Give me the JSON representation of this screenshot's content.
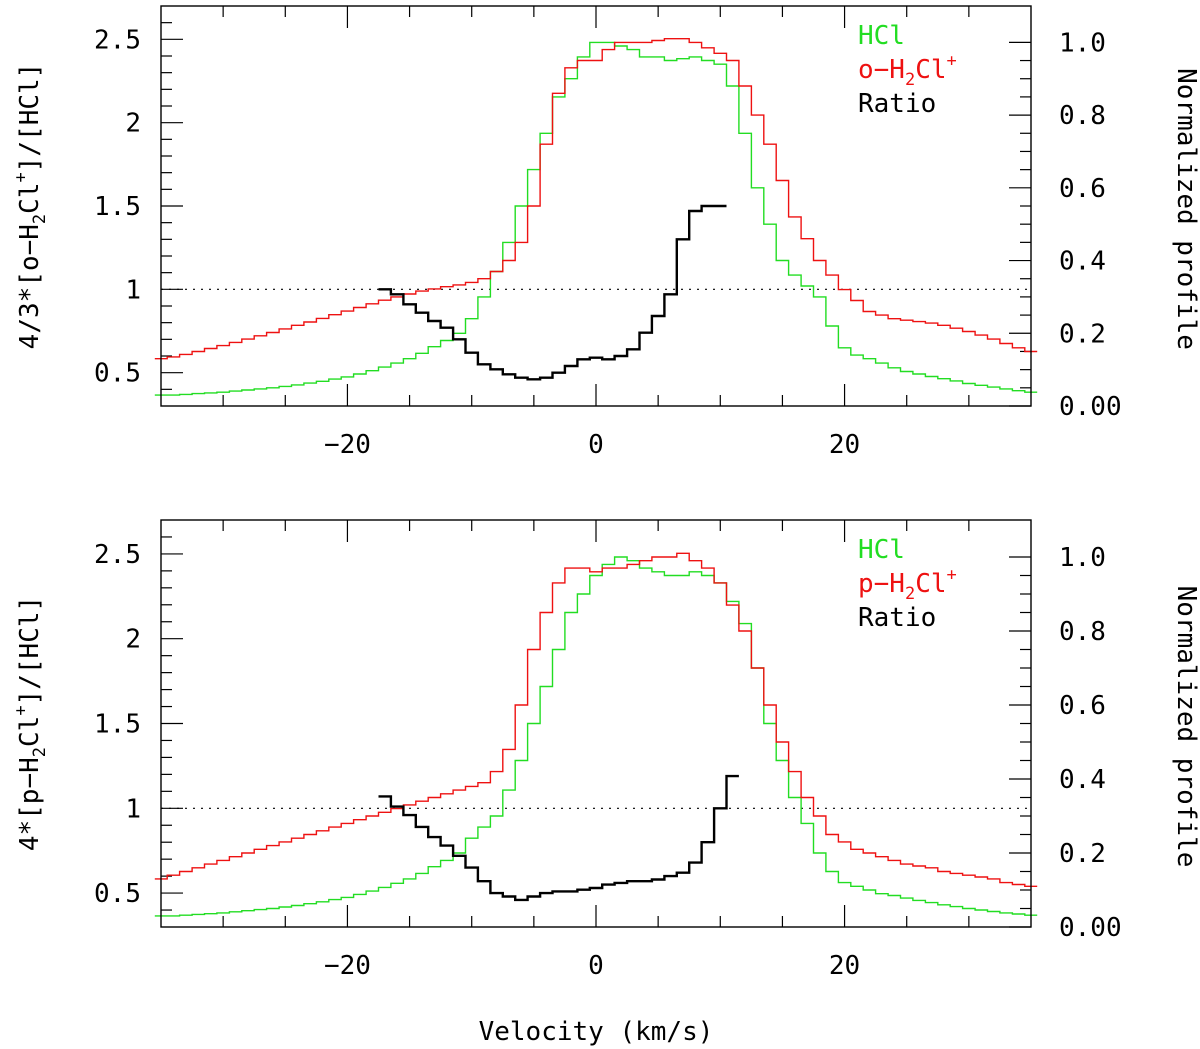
{
  "xlabel": "Velocity (km/s)",
  "colors": {
    "hcl": "#22dd22",
    "h2cl": "#ee1111",
    "ratio": "#000000"
  },
  "chart_data": [
    {
      "type": "line",
      "panel": "top",
      "xlim": [
        -35,
        35
      ],
      "ylim_left": [
        0.3,
        2.7
      ],
      "ylim_right": [
        0.0,
        1.1
      ],
      "xticks": [
        -20,
        0,
        20
      ],
      "yticks_left": [
        0.5,
        1,
        1.5,
        2,
        2.5
      ],
      "yticks_left_labels": [
        "0.5",
        "1",
        "1.5",
        "2",
        "2.5"
      ],
      "yticks_right": [
        0.0,
        0.2,
        0.4,
        0.6,
        0.8,
        1.0
      ],
      "yticks_right_labels": [
        "0.00",
        "0.2",
        "0.4",
        "0.6",
        "0.8",
        "1.0"
      ],
      "ylabel_left": {
        "pre": "4/3*[o−H",
        "sub": "2",
        "mid": "Cl",
        "sup": "+",
        "post": "]/[HCl]"
      },
      "ylabel_right": "Normalized profile",
      "reference_line": 1,
      "legend": [
        {
          "name": "HCl",
          "color_key": "hcl",
          "pre": "HCl",
          "sub": "",
          "mid": "",
          "sup": ""
        },
        {
          "name": "o-H2Cl+",
          "color_key": "h2cl",
          "pre": "o−H",
          "sub": "2",
          "mid": "Cl",
          "sup": "+"
        },
        {
          "name": "Ratio",
          "color_key": "ratio",
          "pre": "Ratio",
          "sub": "",
          "mid": "",
          "sup": ""
        }
      ],
      "series": [
        {
          "name": "HCl",
          "axis": "right",
          "color_key": "hcl",
          "x0": -35,
          "step": 1,
          "values": [
            0.03,
            0.03,
            0.032,
            0.034,
            0.036,
            0.038,
            0.041,
            0.044,
            0.047,
            0.05,
            0.054,
            0.058,
            0.063,
            0.068,
            0.074,
            0.08,
            0.088,
            0.097,
            0.107,
            0.118,
            0.13,
            0.145,
            0.163,
            0.18,
            0.2,
            0.24,
            0.3,
            0.37,
            0.45,
            0.55,
            0.65,
            0.75,
            0.85,
            0.9,
            0.96,
            1.0,
            1.0,
            0.99,
            0.98,
            0.96,
            0.96,
            0.95,
            0.955,
            0.96,
            0.95,
            0.94,
            0.88,
            0.75,
            0.6,
            0.5,
            0.4,
            0.36,
            0.33,
            0.3,
            0.22,
            0.16,
            0.14,
            0.13,
            0.118,
            0.105,
            0.095,
            0.088,
            0.081,
            0.075,
            0.069,
            0.062,
            0.057,
            0.052,
            0.047,
            0.042,
            0.038
          ]
        },
        {
          "name": "o-H2Cl+",
          "axis": "right",
          "color_key": "h2cl",
          "x0": -35,
          "step": 1,
          "values": [
            0.13,
            0.135,
            0.142,
            0.15,
            0.158,
            0.166,
            0.175,
            0.184,
            0.193,
            0.202,
            0.212,
            0.222,
            0.231,
            0.241,
            0.251,
            0.261,
            0.271,
            0.281,
            0.291,
            0.3,
            0.308,
            0.316,
            0.322,
            0.328,
            0.333,
            0.34,
            0.35,
            0.37,
            0.4,
            0.45,
            0.55,
            0.72,
            0.86,
            0.93,
            0.95,
            0.95,
            0.98,
            1.0,
            1.0,
            1.0,
            1.005,
            1.01,
            1.01,
            1.0,
            0.985,
            0.97,
            0.95,
            0.88,
            0.8,
            0.72,
            0.62,
            0.52,
            0.46,
            0.4,
            0.36,
            0.32,
            0.29,
            0.26,
            0.25,
            0.24,
            0.236,
            0.232,
            0.228,
            0.222,
            0.214,
            0.205,
            0.195,
            0.184,
            0.172,
            0.16,
            0.15
          ]
        },
        {
          "name": "Ratio",
          "axis": "left",
          "color_key": "ratio",
          "x0": -17,
          "step": 1,
          "values": [
            1.0,
            0.97,
            0.91,
            0.86,
            0.81,
            0.77,
            0.7,
            0.62,
            0.55,
            0.52,
            0.49,
            0.47,
            0.46,
            0.47,
            0.5,
            0.54,
            0.58,
            0.59,
            0.58,
            0.6,
            0.64,
            0.74,
            0.84,
            0.97,
            1.3,
            1.47,
            1.5,
            1.5
          ]
        }
      ]
    },
    {
      "type": "line",
      "panel": "bottom",
      "xlim": [
        -35,
        35
      ],
      "ylim_left": [
        0.3,
        2.7
      ],
      "ylim_right": [
        0.0,
        1.1
      ],
      "xticks": [
        -20,
        0,
        20
      ],
      "yticks_left": [
        0.5,
        1,
        1.5,
        2,
        2.5
      ],
      "yticks_left_labels": [
        "0.5",
        "1",
        "1.5",
        "2",
        "2.5"
      ],
      "yticks_right": [
        0.0,
        0.2,
        0.4,
        0.6,
        0.8,
        1.0
      ],
      "yticks_right_labels": [
        "0.00",
        "0.2",
        "0.4",
        "0.6",
        "0.8",
        "1.0"
      ],
      "ylabel_left": {
        "pre": "4*[p−H",
        "sub": "2",
        "mid": "Cl",
        "sup": "+",
        "post": "]/[HCl]"
      },
      "ylabel_right": "Normalized profile",
      "reference_line": 1,
      "legend": [
        {
          "name": "HCl",
          "color_key": "hcl",
          "pre": "HCl",
          "sub": "",
          "mid": "",
          "sup": ""
        },
        {
          "name": "p-H2Cl+",
          "color_key": "h2cl",
          "pre": "p−H",
          "sub": "2",
          "mid": "Cl",
          "sup": "+"
        },
        {
          "name": "Ratio",
          "color_key": "ratio",
          "pre": "Ratio",
          "sub": "",
          "mid": "",
          "sup": ""
        }
      ],
      "series": [
        {
          "name": "HCl",
          "axis": "right",
          "color_key": "hcl",
          "x0": -35,
          "step": 1,
          "values": [
            0.03,
            0.03,
            0.032,
            0.034,
            0.036,
            0.038,
            0.041,
            0.044,
            0.047,
            0.05,
            0.054,
            0.058,
            0.063,
            0.068,
            0.074,
            0.08,
            0.088,
            0.097,
            0.107,
            0.118,
            0.13,
            0.145,
            0.163,
            0.18,
            0.2,
            0.24,
            0.27,
            0.3,
            0.37,
            0.45,
            0.55,
            0.65,
            0.75,
            0.85,
            0.9,
            0.95,
            0.98,
            1.0,
            0.99,
            0.97,
            0.96,
            0.95,
            0.95,
            0.96,
            0.95,
            0.93,
            0.88,
            0.82,
            0.7,
            0.55,
            0.45,
            0.35,
            0.28,
            0.2,
            0.15,
            0.12,
            0.11,
            0.1,
            0.09,
            0.085,
            0.078,
            0.072,
            0.066,
            0.06,
            0.055,
            0.05,
            0.046,
            0.042,
            0.038,
            0.035,
            0.032
          ]
        },
        {
          "name": "p-H2Cl+",
          "axis": "right",
          "color_key": "h2cl",
          "x0": -35,
          "step": 1,
          "values": [
            0.13,
            0.14,
            0.15,
            0.16,
            0.17,
            0.18,
            0.19,
            0.2,
            0.21,
            0.22,
            0.23,
            0.24,
            0.25,
            0.26,
            0.27,
            0.28,
            0.29,
            0.3,
            0.31,
            0.32,
            0.33,
            0.34,
            0.35,
            0.36,
            0.37,
            0.38,
            0.39,
            0.42,
            0.48,
            0.6,
            0.75,
            0.85,
            0.93,
            0.97,
            0.97,
            0.96,
            0.97,
            0.97,
            0.98,
            0.99,
            1.0,
            1.0,
            1.01,
            0.99,
            0.97,
            0.93,
            0.87,
            0.8,
            0.7,
            0.6,
            0.5,
            0.42,
            0.35,
            0.3,
            0.25,
            0.23,
            0.21,
            0.2,
            0.19,
            0.18,
            0.17,
            0.165,
            0.16,
            0.15,
            0.145,
            0.14,
            0.135,
            0.13,
            0.12,
            0.115,
            0.11
          ]
        },
        {
          "name": "Ratio",
          "axis": "left",
          "color_key": "ratio",
          "x0": -17,
          "step": 1,
          "values": [
            1.07,
            1.01,
            0.96,
            0.89,
            0.83,
            0.78,
            0.72,
            0.65,
            0.57,
            0.5,
            0.48,
            0.46,
            0.48,
            0.5,
            0.51,
            0.51,
            0.52,
            0.53,
            0.55,
            0.56,
            0.57,
            0.57,
            0.58,
            0.6,
            0.62,
            0.68,
            0.8,
            1.0,
            1.19
          ]
        }
      ]
    }
  ]
}
